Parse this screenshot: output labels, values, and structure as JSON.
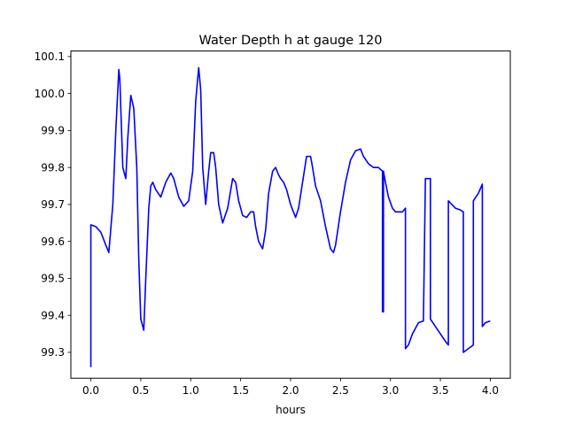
{
  "chart_data": {
    "type": "line",
    "title": "Water Depth h at gauge 120",
    "xlabel": "hours",
    "ylabel": "",
    "xlim": [
      -0.2,
      4.2
    ],
    "ylim": [
      99.23,
      100.115
    ],
    "xticks": [
      0.0,
      0.5,
      1.0,
      1.5,
      2.0,
      2.5,
      3.0,
      3.5,
      4.0
    ],
    "xtick_labels": [
      "0.0",
      "0.5",
      "1.0",
      "1.5",
      "2.0",
      "2.5",
      "3.0",
      "3.5",
      "4.0"
    ],
    "yticks": [
      99.3,
      99.4,
      99.5,
      99.6,
      99.7,
      99.8,
      99.9,
      100.0,
      100.1
    ],
    "ytick_labels": [
      "99.3",
      "99.4",
      "99.5",
      "99.6",
      "99.7",
      "99.8",
      "99.9",
      "100.0",
      "100.1"
    ],
    "grid": false,
    "series": [
      {
        "name": "",
        "color": "#0000ff",
        "x": [
          0.0,
          0.0,
          0.05,
          0.1,
          0.15,
          0.18,
          0.22,
          0.25,
          0.28,
          0.29,
          0.32,
          0.35,
          0.37,
          0.4,
          0.43,
          0.46,
          0.48,
          0.5,
          0.53,
          0.55,
          0.58,
          0.6,
          0.62,
          0.65,
          0.7,
          0.75,
          0.8,
          0.83,
          0.88,
          0.93,
          0.98,
          1.02,
          1.05,
          1.08,
          1.1,
          1.12,
          1.15,
          1.18,
          1.2,
          1.23,
          1.25,
          1.28,
          1.32,
          1.37,
          1.42,
          1.45,
          1.48,
          1.52,
          1.56,
          1.6,
          1.63,
          1.65,
          1.68,
          1.72,
          1.75,
          1.78,
          1.82,
          1.85,
          1.88,
          1.9,
          1.93,
          1.96,
          2.0,
          2.05,
          2.08,
          2.12,
          2.16,
          2.2,
          2.22,
          2.25,
          2.3,
          2.35,
          2.4,
          2.43,
          2.45,
          2.5,
          2.55,
          2.6,
          2.65,
          2.7,
          2.73,
          2.78,
          2.83,
          2.88,
          2.92,
          2.92,
          2.93,
          2.93,
          2.95,
          2.98,
          3.02,
          3.05,
          3.08,
          3.12,
          3.15,
          3.15,
          3.18,
          3.22,
          3.28,
          3.33,
          3.35,
          3.35,
          3.4,
          3.4,
          3.45,
          3.5,
          3.55,
          3.58,
          3.58,
          3.65,
          3.7,
          3.73,
          3.73,
          3.78,
          3.83,
          3.83,
          3.88,
          3.92,
          3.92,
          3.95,
          4.0
        ],
        "y": [
          99.26,
          99.645,
          99.64,
          99.625,
          99.59,
          99.57,
          99.7,
          99.9,
          100.065,
          100.04,
          99.8,
          99.77,
          99.88,
          99.995,
          99.96,
          99.8,
          99.55,
          99.39,
          99.36,
          99.5,
          99.69,
          99.75,
          99.76,
          99.74,
          99.72,
          99.76,
          99.785,
          99.77,
          99.72,
          99.695,
          99.71,
          99.79,
          99.98,
          100.07,
          100.01,
          99.8,
          99.7,
          99.79,
          99.84,
          99.84,
          99.8,
          99.7,
          99.65,
          99.69,
          99.77,
          99.76,
          99.71,
          99.67,
          99.665,
          99.68,
          99.68,
          99.64,
          99.6,
          99.58,
          99.63,
          99.73,
          99.79,
          99.8,
          99.78,
          99.77,
          99.76,
          99.74,
          99.7,
          99.665,
          99.69,
          99.76,
          99.83,
          99.83,
          99.8,
          99.75,
          99.71,
          99.64,
          99.58,
          99.57,
          99.59,
          99.68,
          99.76,
          99.82,
          99.845,
          99.85,
          99.83,
          99.81,
          99.8,
          99.8,
          99.79,
          99.41,
          99.41,
          99.79,
          99.76,
          99.72,
          99.69,
          99.68,
          99.68,
          99.68,
          99.69,
          99.31,
          99.32,
          99.35,
          99.38,
          99.385,
          99.77,
          99.77,
          99.77,
          99.39,
          99.37,
          99.35,
          99.33,
          99.32,
          99.71,
          99.69,
          99.685,
          99.68,
          99.3,
          99.31,
          99.32,
          99.71,
          99.73,
          99.755,
          99.37,
          99.38,
          99.385
        ]
      }
    ]
  }
}
